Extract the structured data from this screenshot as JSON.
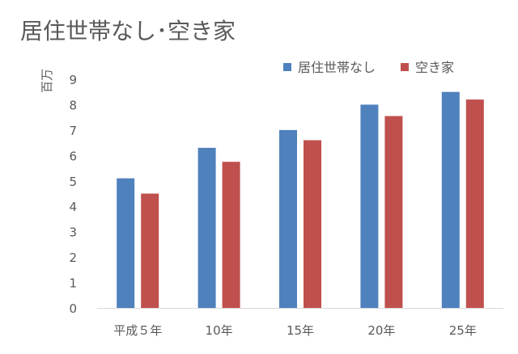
{
  "chart_data": {
    "type": "bar",
    "title": "居住世帯なし･空き家",
    "ylabel": "百万",
    "xlabel": "",
    "categories": [
      "平成５年",
      "10年",
      "15年",
      "20年",
      "25年"
    ],
    "series": [
      {
        "name": "居住世帯なし",
        "color": "#4F81BD",
        "values": [
          5.1,
          6.3,
          7.0,
          8.0,
          8.5
        ]
      },
      {
        "name": "空き家",
        "color": "#C0504D",
        "values": [
          4.5,
          5.75,
          6.6,
          7.55,
          8.2
        ]
      }
    ],
    "ylim": [
      0,
      9
    ],
    "yticks": [
      0,
      1,
      2,
      3,
      4,
      5,
      6,
      7,
      8,
      9
    ],
    "grid": false,
    "legend_position": "top-right",
    "axis_color": "#d9d9d9",
    "text_color": "#595959"
  }
}
